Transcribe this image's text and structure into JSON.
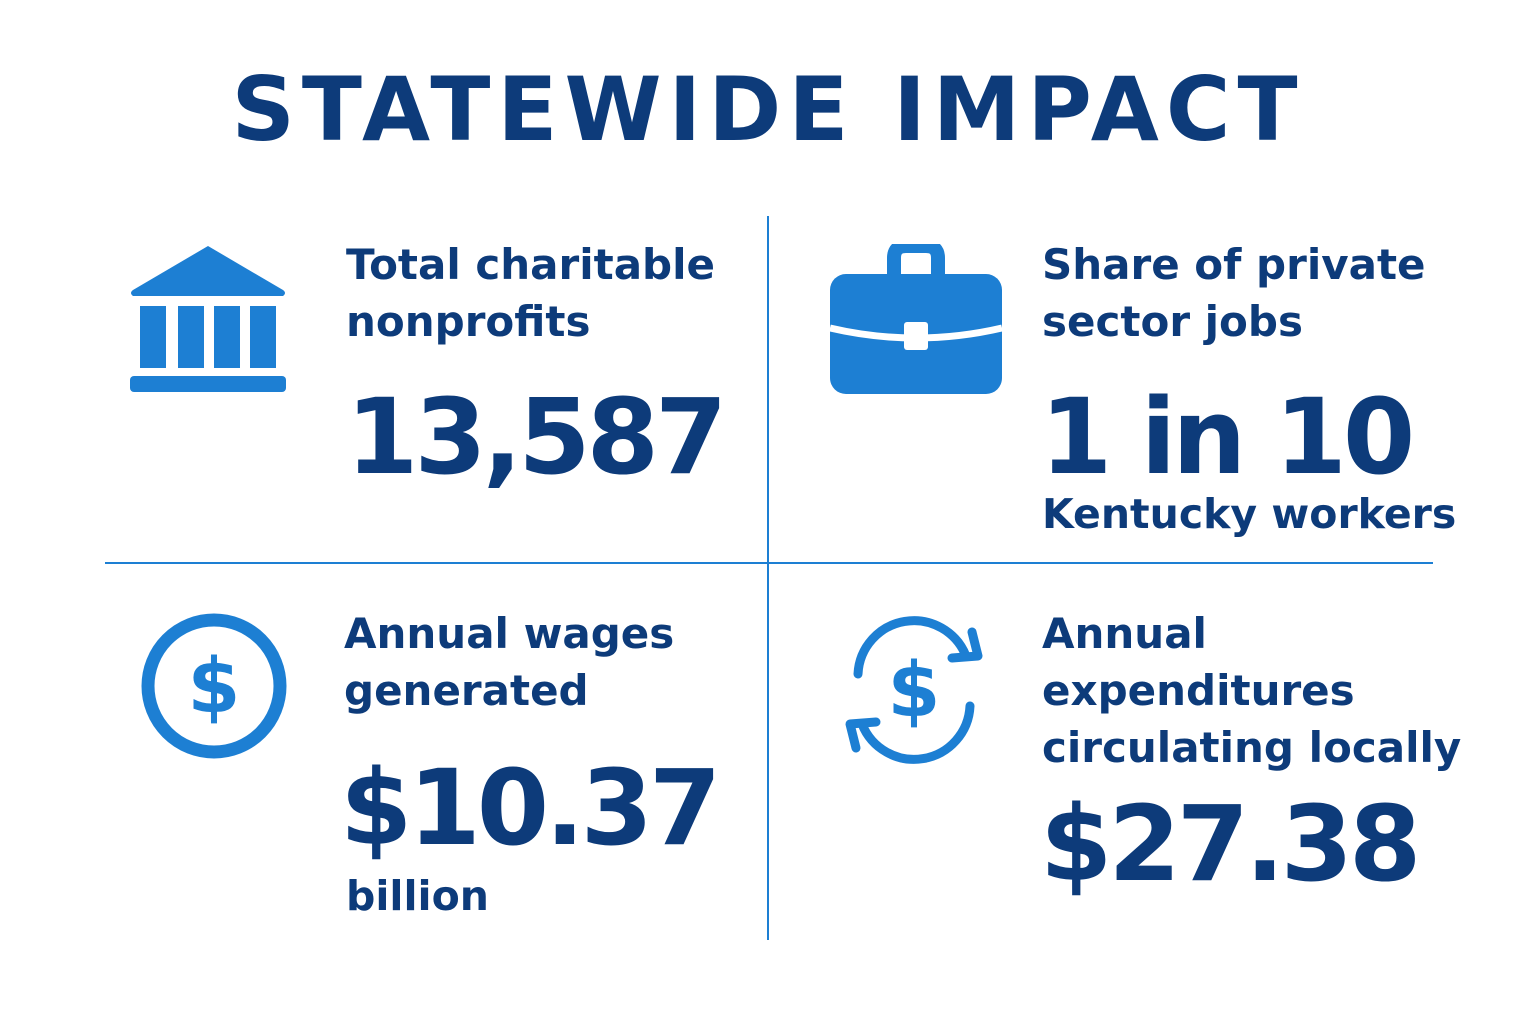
{
  "title": "STATEWIDE IMPACT",
  "colors": {
    "text": "#0d3b7a",
    "accent": "#1d7fd3"
  },
  "stats": [
    {
      "icon": "bank-icon",
      "label_lines": [
        "Total charitable",
        "nonprofits"
      ],
      "value": "13,587",
      "sub": ""
    },
    {
      "icon": "briefcase-icon",
      "label_lines": [
        "Share of private",
        "sector jobs"
      ],
      "value": "1 in 10",
      "sub": "Kentucky workers"
    },
    {
      "icon": "dollar-circle-icon",
      "label_lines": [
        "Annual wages",
        "generated"
      ],
      "value": "$10.37",
      "sub": "billion"
    },
    {
      "icon": "dollar-cycle-icon",
      "label_lines": [
        "Annual",
        "expenditures",
        "circulating locally"
      ],
      "value": "$27.38",
      "sub": ""
    }
  ]
}
